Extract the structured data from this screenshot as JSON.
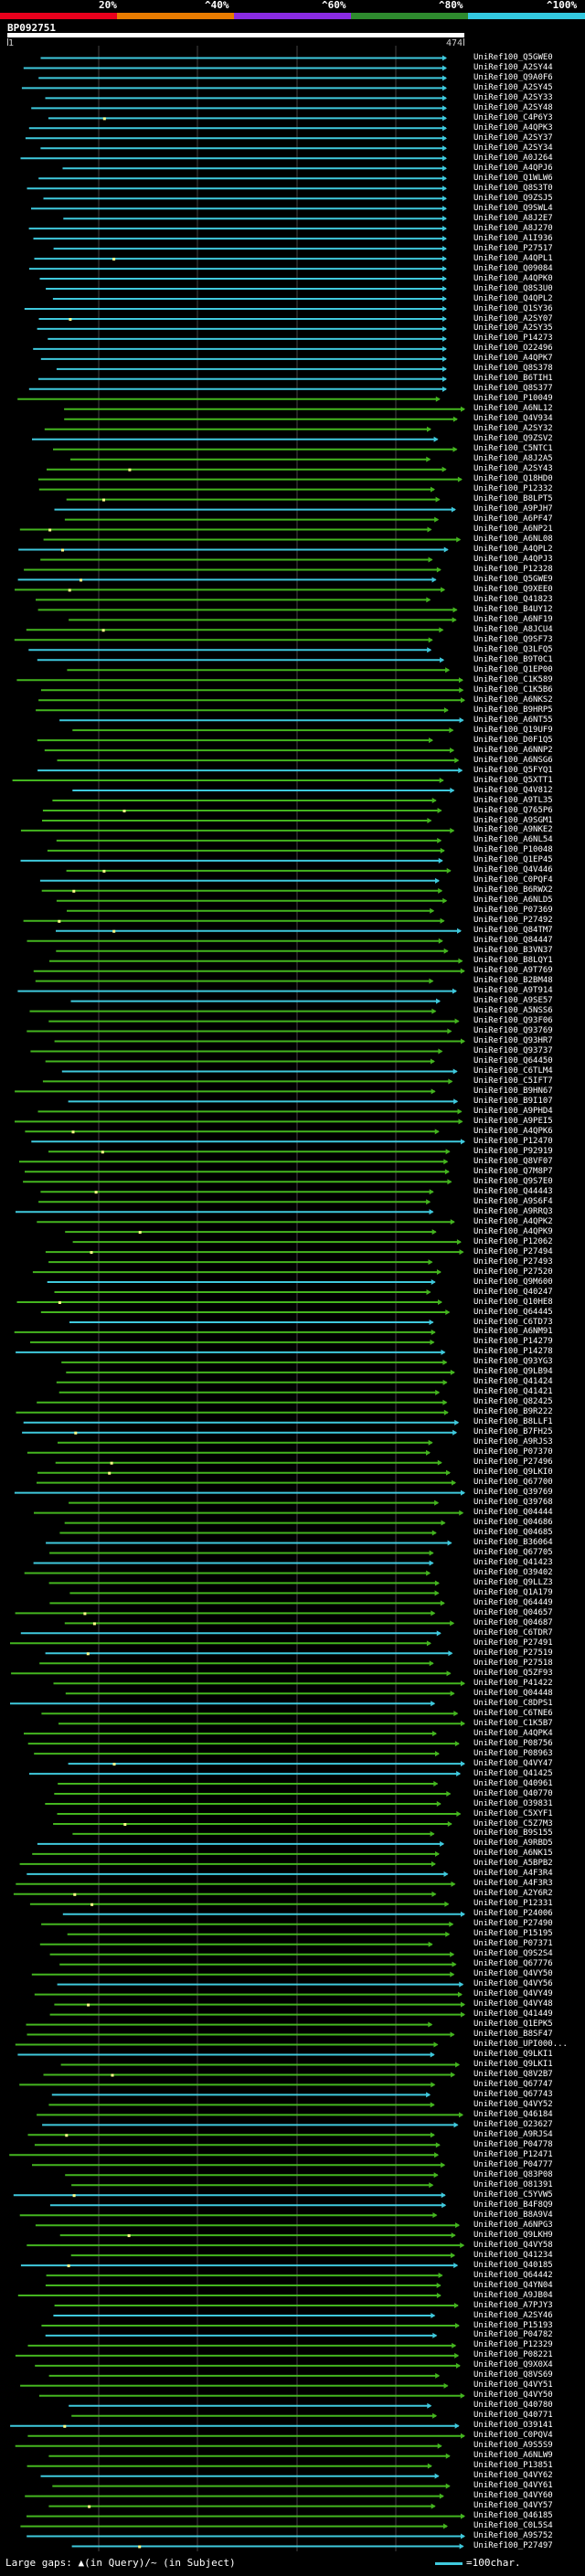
{
  "scale": {
    "labels": [
      "20%",
      "^40%",
      "^60%",
      "^80%",
      "^100%"
    ],
    "colors": [
      "#e8001c",
      "#e87b00",
      "#8a2be2",
      "#2e8b2e",
      "#33c9e0"
    ]
  },
  "query": {
    "name": "BP092751",
    "start": "1",
    "end": "474"
  },
  "colors": {
    "cyan": "#3fc9dd",
    "green": "#44b51f",
    "gap": "#ffff88"
  },
  "hits": [
    "UniRef100_Q5GWE0",
    "UniRef100_A2SY44",
    "UniRef100_Q9A0F6",
    "UniRef100_A2SY45",
    "UniRef100_A2SY33",
    "UniRef100_A2SY48",
    "UniRef100_C4P6Y3",
    "UniRef100_A4QPK3",
    "UniRef100_A2SY37",
    "UniRef100_A2SY34",
    "UniRef100_A0J264",
    "UniRef100_A4QPJ6",
    "UniRef100_Q1WLW6",
    "UniRef100_Q8S3T0",
    "UniRef100_Q9ZSJ5",
    "UniRef100_Q9SWL4",
    "UniRef100_A8J2E7",
    "UniRef100_A8J270",
    "UniRef100_A1I936",
    "UniRef100_P27517",
    "UniRef100_A4QPL1",
    "UniRef100_Q09084",
    "UniRef100_A4QPK0",
    "UniRef100_Q8S3U0",
    "UniRef100_Q4QPL2",
    "UniRef100_Q1SY36",
    "UniRef100_A2SY07",
    "UniRef100_A2SY35",
    "UniRef100_P14273",
    "UniRef100_O22496",
    "UniRef100_A4QPK7",
    "UniRef100_Q8S378",
    "UniRef100_B6TIH1",
    "UniRef100_Q8S377",
    "UniRef100_P10049",
    "UniRef100_A6NL12",
    "UniRef100_Q4V934",
    "UniRef100_A2SY32",
    "UniRef100_Q9ZSV2",
    "UniRef100_C5NTC1",
    "UniRef100_A8J2A5",
    "UniRef100_A2SY43",
    "UniRef100_Q18HD0",
    "UniRef100_P12332",
    "UniRef100_B8LPT5",
    "UniRef100_A9PJH7",
    "UniRef100_A6PF47",
    "UniRef100_A6NP21",
    "UniRef100_A6NL08",
    "UniRef100_A4QPL2",
    "UniRef100_A4QPJ3",
    "UniRef100_P12328",
    "UniRef100_Q5GWE9",
    "UniRef100_Q9XEE0",
    "UniRef100_Q41823",
    "UniRef100_B4UY12",
    "UniRef100_A6NF19",
    "UniRef100_A8JCU4",
    "UniRef100_Q9SF73",
    "UniRef100_Q3LFQ5",
    "UniRef100_B9T0C1",
    "UniRef100_Q1EP00",
    "UniRef100_C1K589",
    "UniRef100_C1K5B6",
    "UniRef100_A6NKS2",
    "UniRef100_B9HRP5",
    "UniRef100_A6NT55",
    "UniRef100_Q19UF9",
    "UniRef100_D0F1Q5",
    "UniRef100_A6NNP2",
    "UniRef100_A6NSG6",
    "UniRef100_Q5FYQ1",
    "UniRef100_Q5XTT1",
    "UniRef100_Q4V812",
    "UniRef100_A9TL35",
    "UniRef100_Q765P6",
    "UniRef100_A9SGM1",
    "UniRef100_A9NKE2",
    "UniRef100_A6NL54",
    "UniRef100_P10048",
    "UniRef100_Q1EP45",
    "UniRef100_Q4V446",
    "UniRef100_C0PQF4",
    "UniRef100_B6RWX2",
    "UniRef100_A6NLD5",
    "UniRef100_P07369",
    "UniRef100_P27492",
    "UniRef100_Q84TM7",
    "UniRef100_Q84447",
    "UniRef100_B3VN37",
    "UniRef100_B8LQY1",
    "UniRef100_A9T769",
    "UniRef100_B2BM48",
    "UniRef100_A9T914",
    "UniRef100_A9SE57",
    "UniRef100_A5NSS6",
    "UniRef100_Q93F06",
    "UniRef100_Q93769",
    "UniRef100_Q93HR7",
    "UniRef100_Q93737",
    "UniRef100_Q64450",
    "UniRef100_C6TLM4",
    "UniRef100_C5IFT7",
    "UniRef100_B9HN67",
    "UniRef100_B9I107",
    "UniRef100_A9PHD4",
    "UniRef100_A9PEI5",
    "UniRef100_A4QPK6",
    "UniRef100_P12470",
    "UniRef100_P92919",
    "UniRef100_Q8VF07",
    "UniRef100_Q7M8P7",
    "UniRef100_Q9S7E0",
    "UniRef100_Q44443",
    "UniRef100_A9S6F4",
    "UniRef100_A9RRQ3",
    "UniRef100_A4QPK2",
    "UniRef100_A4QPK9",
    "UniRef100_P12062",
    "UniRef100_P27494",
    "UniRef100_P27493",
    "UniRef100_P27520",
    "UniRef100_Q9M600",
    "UniRef100_Q40247",
    "UniRef100_Q10HE8",
    "UniRef100_Q64445",
    "UniRef100_C6TD73",
    "UniRef100_A6NM91",
    "UniRef100_P14279",
    "UniRef100_P14278",
    "UniRef100_Q93YG3",
    "UniRef100_Q9LB94",
    "UniRef100_Q41424",
    "UniRef100_Q41421",
    "UniRef100_Q82425",
    "UniRef100_B9R222",
    "UniRef100_B8LLF1",
    "UniRef100_B7FH25",
    "UniRef100_A9RJS3",
    "UniRef100_P07370",
    "UniRef100_P27496",
    "UniRef100_Q9LKI0",
    "UniRef100_Q67700",
    "UniRef100_Q39769",
    "UniRef100_Q39768",
    "UniRef100_Q04444",
    "UniRef100_Q04686",
    "UniRef100_Q04685",
    "UniRef100_B36064",
    "UniRef100_Q67705",
    "UniRef100_Q41423",
    "UniRef100_O39402",
    "UniRef100_Q9LLZ3",
    "UniRef100_Q1A179",
    "UniRef100_Q64449",
    "UniRef100_Q04657",
    "UniRef100_Q04687",
    "UniRef100_C6TDR7",
    "UniRef100_P27491",
    "UniRef100_P27519",
    "UniRef100_P27518",
    "UniRef100_Q5ZF93",
    "UniRef100_P41422",
    "UniRef100_Q04448",
    "UniRef100_C8DPS1",
    "UniRef100_C6TNE6",
    "UniRef100_C1K5B7",
    "UniRef100_A4QPK4",
    "UniRef100_P08756",
    "UniRef100_P08963",
    "UniRef100_Q4VY47",
    "UniRef100_Q41425",
    "UniRef100_Q40961",
    "UniRef100_Q40770",
    "UniRef100_O39831",
    "UniRef100_C5XYF1",
    "UniRef100_C5Z7M3",
    "UniRef100_B9S155",
    "UniRef100_A9RBD5",
    "UniRef100_A6NK15",
    "UniRef100_A5BPB2",
    "UniRef100_A4F3R4",
    "UniRef100_A4F3R3",
    "UniRef100_A2Y6R2",
    "UniRef100_P12331",
    "UniRef100_P24006",
    "UniRef100_P27490",
    "UniRef100_P15195",
    "UniRef100_P07371",
    "UniRef100_Q9S2S4",
    "UniRef100_Q67776",
    "UniRef100_Q4VY50",
    "UniRef100_Q4VY56",
    "UniRef100_Q4VY49",
    "UniRef100_Q4VY48",
    "UniRef100_Q41449",
    "UniRef100_Q1EPK5",
    "UniRef100_B8SF47",
    "UniRef100_UPI000...",
    "UniRef100_Q9LKI1",
    "UniRef100_Q9LKI1",
    "UniRef100_Q8V2B7",
    "UniRef100_Q67747",
    "UniRef100_Q67743",
    "UniRef100_Q4VY52",
    "UniRef100_Q46184",
    "UniRef100_O23627",
    "UniRef100_A9RJS4",
    "UniRef100_P04778",
    "UniRef100_P12471",
    "UniRef100_P04777",
    "UniRef100_Q83P08",
    "UniRef100_O81391",
    "UniRef100_C5YVW5",
    "UniRef100_B4F8Q9",
    "UniRef100_B8A9V4",
    "UniRef100_A6NPG3",
    "UniRef100_Q9LKH9",
    "UniRef100_Q4VY58",
    "UniRef100_Q41234",
    "UniRef100_Q40185",
    "UniRef100_Q64442",
    "UniRef100_Q4YN04",
    "UniRef100_A9JB04",
    "UniRef100_A7PJY3",
    "UniRef100_A2SY46",
    "UniRef100_P15193",
    "UniRef100_P04782",
    "UniRef100_P12329",
    "UniRef100_P08221",
    "UniRef100_Q9X0X4",
    "UniRef100_Q8VS69",
    "UniRef100_Q4VY51",
    "UniRef100_Q4VY50",
    "UniRef100_Q40780",
    "UniRef100_Q40771",
    "UniRef100_O39141",
    "UniRef100_C0PQV4",
    "UniRef100_A9S5S9",
    "UniRef100_A6NLW9",
    "UniRef100_P13851",
    "UniRef100_Q4VY62",
    "UniRef100_Q4VY61",
    "UniRef100_Q4VY60",
    "UniRef100_Q4VY57",
    "UniRef100_Q46185",
    "UniRef100_C0L5S4",
    "UniRef100_A9S752",
    "UniRef100_P27497"
  ],
  "legend": {
    "text": "Large gaps: ▲(in Query)/~ (in Subject)",
    "key": "=100char."
  }
}
